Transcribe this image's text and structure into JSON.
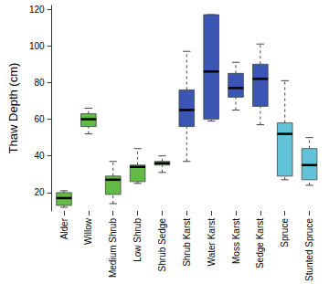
{
  "chart_data": {
    "type": "boxplot",
    "y_label": "Thaw Depth (cm)",
    "categories": [
      "Alder",
      "Willow",
      "Medium Shrub",
      "Low Shrub",
      "Shrub Sedge",
      "Shrub Karst",
      "Water Karst",
      "Moss Karst",
      "Sedge Karst",
      "Spruce",
      "Stunted Spruce"
    ],
    "values": [
      [
        12,
        13,
        17,
        20,
        21
      ],
      [
        52,
        56,
        60,
        63,
        66
      ],
      [
        14,
        19,
        27,
        29,
        37
      ],
      [
        25,
        26,
        34,
        35,
        44
      ],
      [
        31,
        35,
        36,
        37,
        40
      ],
      [
        37,
        56,
        65,
        76,
        97
      ],
      [
        59,
        60,
        86,
        117,
        117
      ],
      [
        65,
        72,
        77,
        85,
        91
      ],
      [
        57,
        67,
        82,
        90,
        101
      ],
      [
        27,
        29,
        52,
        58,
        81
      ],
      [
        24,
        27,
        35,
        44,
        50
      ]
    ],
    "colors": [
      "#62bb47",
      "#62bb47",
      "#62bb47",
      "#62bb47",
      "#62bb47",
      "#3a55b4",
      "#3a55b4",
      "#3a55b4",
      "#3a55b4",
      "#62c3d8",
      "#62c3d8"
    ],
    "line_style": "dashed",
    "ylim": [
      10,
      122
    ],
    "yticks": [
      20,
      40,
      60,
      80,
      100,
      120
    ],
    "grid": false
  }
}
